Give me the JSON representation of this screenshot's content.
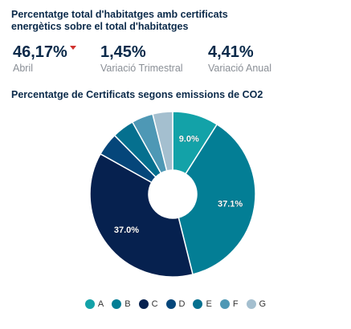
{
  "header": {
    "title": "Percentatge total d'habitatges amb certificats energètics sobre el total d'habitatges"
  },
  "kpis": [
    {
      "value": "46,17%",
      "label": "Abril",
      "trend": "down"
    },
    {
      "value": "1,45%",
      "label": "Variació Trimestral"
    },
    {
      "value": "4,41%",
      "label": "Variació Anual"
    }
  ],
  "colors": {
    "trend_down": "#d0312d",
    "text": "#0b2a4a"
  },
  "chart_data": {
    "type": "pie",
    "title": "Percentatge de Certificats segons emissions de CO2",
    "donut": true,
    "legend_position": "bottom",
    "categories": [
      "A",
      "B",
      "C",
      "D",
      "E",
      "F",
      "G"
    ],
    "values": [
      9.0,
      37.1,
      37.0,
      4.5,
      4.3,
      4.2,
      3.9
    ],
    "data_labels": [
      "9.0%",
      "37.1%",
      "37.0%",
      "",
      "",
      "",
      ""
    ],
    "colors": [
      "#13a2a8",
      "#037e95",
      "#06214f",
      "#05467a",
      "#05708f",
      "#4e98b5",
      "#a4bfcf"
    ]
  }
}
